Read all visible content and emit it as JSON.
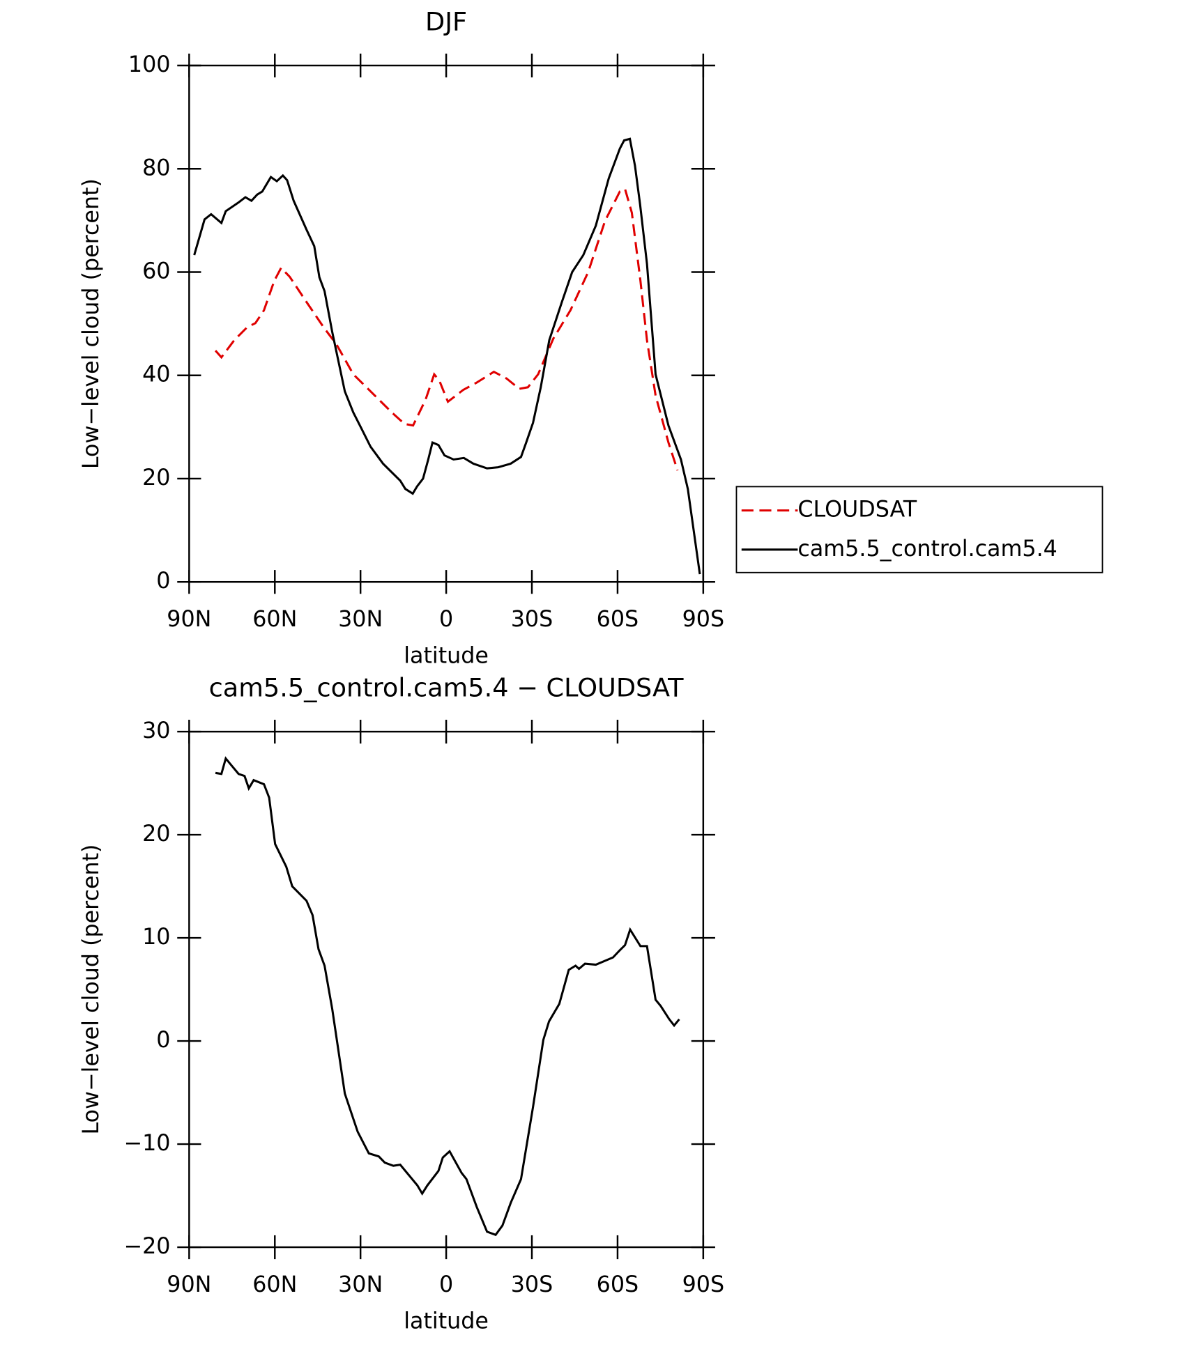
{
  "chart_data": [
    {
      "type": "line",
      "title": "DJF",
      "x_label": "latitude",
      "y_label": "Low−level cloud (percent)",
      "xlim": [
        90,
        -90
      ],
      "xticks": [
        {
          "value": 90,
          "label": "90N"
        },
        {
          "value": 60,
          "label": "60N"
        },
        {
          "value": 30,
          "label": "30N"
        },
        0,
        {
          "value": -30,
          "label": "30S"
        },
        {
          "value": -60,
          "label": "60S"
        },
        {
          "value": -90,
          "label": "90S"
        }
      ],
      "ylim": [
        0,
        100
      ],
      "yticks": [
        0,
        20,
        40,
        60,
        80,
        100
      ],
      "legend": "right",
      "series": [
        {
          "name": "CLOUDSAT",
          "color": "#e00000",
          "line_style": "dashed",
          "x": [
            80.8,
            78.7,
            74.2,
            69.7,
            66.8,
            63.8,
            60.2,
            57.8,
            54.8,
            48.9,
            42.9,
            38.4,
            32.5,
            25,
            19,
            14.6,
            11.6,
            7.2,
            4.2,
            2.4,
            -0.6,
            -6,
            -10.7,
            -16.7,
            -21.1,
            -25.6,
            -28.6,
            -32.2,
            -37.5,
            -43.5,
            -49.7,
            -55.6,
            -60.8,
            -62.6,
            -65,
            -68,
            -70.3,
            -73.3,
            -77.8,
            -81
          ],
          "values": [
            44.8,
            43.5,
            46.8,
            49.3,
            50.1,
            52.6,
            58.3,
            60.8,
            59.1,
            54.2,
            49.3,
            46,
            40.2,
            36.1,
            32.8,
            30.6,
            30.3,
            35.3,
            40.2,
            39,
            34.9,
            37.2,
            38.6,
            40.7,
            39.4,
            37.4,
            37.7,
            40.2,
            47.1,
            52.6,
            60,
            69.9,
            75.6,
            76.1,
            71.5,
            58.3,
            46.8,
            36.1,
            27,
            21.6
          ]
        },
        {
          "name": "cam5.5_control.cam5.4",
          "color": "#000000",
          "line_style": "solid",
          "x": [
            88.2,
            84.6,
            82.3,
            78.7,
            77.2,
            72.7,
            70.3,
            68.2,
            66.2,
            64.4,
            61.4,
            59.3,
            57.2,
            55.7,
            53.4,
            48.9,
            46.2,
            44.4,
            42.6,
            39.9,
            35.5,
            32.5,
            29.5,
            26.5,
            22.1,
            16.1,
            14.3,
            11.7,
            10.2,
            8.1,
            6.3,
            4.8,
            2.7,
            0.6,
            -2.6,
            -6.2,
            -9.5,
            -14.3,
            -18.2,
            -22.6,
            -26.2,
            -28,
            -30.4,
            -33.1,
            -36.1,
            -40.5,
            -44.1,
            -48,
            -52.4,
            -56.9,
            -60.8,
            -62.3,
            -64.3,
            -66.1,
            -67.9,
            -70.3,
            -73.3,
            -77.8,
            -82.2,
            -84.6,
            -88.8
          ],
          "values": [
            63.3,
            70.2,
            71.2,
            69.5,
            71.8,
            73.5,
            74.5,
            73.8,
            75,
            75.6,
            78.4,
            77.6,
            78.7,
            77.8,
            73.8,
            68.2,
            65,
            59,
            56.3,
            48.4,
            36.9,
            32.8,
            29.5,
            26.2,
            22.9,
            19.6,
            18,
            17.1,
            18.5,
            20,
            23.7,
            27,
            26.5,
            24.5,
            23.7,
            24,
            22.9,
            22,
            22.2,
            22.9,
            24.2,
            27,
            30.8,
            37.7,
            46.8,
            54.2,
            60,
            63.3,
            69,
            78.1,
            83.9,
            85.5,
            85.8,
            80.6,
            73.1,
            61.6,
            40.2,
            30.3,
            23.7,
            18,
            1.5
          ]
        }
      ]
    },
    {
      "type": "line",
      "title": "cam5.5_control.cam5.4 − CLOUDSAT",
      "x_label": "latitude",
      "y_label": "Low−level cloud (percent)",
      "xlim": [
        90,
        -90
      ],
      "xticks": [
        {
          "value": 90,
          "label": "90N"
        },
        {
          "value": 60,
          "label": "60N"
        },
        {
          "value": 30,
          "label": "30N"
        },
        0,
        {
          "value": -30,
          "label": "30S"
        },
        {
          "value": -60,
          "label": "60S"
        },
        {
          "value": -90,
          "label": "90S"
        }
      ],
      "ylim": [
        -20,
        30
      ],
      "yticks": [
        {
          "value": -20,
          "label": "−20"
        },
        {
          "value": -10,
          "label": "−10"
        },
        0,
        10,
        20,
        30
      ],
      "series": [
        {
          "color": "#000000",
          "line_style": "solid",
          "x": [
            80.8,
            78.7,
            77.2,
            75.1,
            72.7,
            70.6,
            69.1,
            67.4,
            63.8,
            62,
            59.9,
            56,
            53.9,
            48.9,
            46.8,
            44.7,
            42.6,
            39.9,
            35.5,
            31,
            27.1,
            23.6,
            21.5,
            18.5,
            16.1,
            10.1,
            8.4,
            6.6,
            2.7,
            1.2,
            -1.2,
            -5.4,
            -7.1,
            -10.7,
            -14.3,
            -17.3,
            -19.7,
            -22.6,
            -26.2,
            -30.4,
            -34,
            -36,
            -39.6,
            -42.9,
            -45.3,
            -46.5,
            -48.6,
            -52.4,
            -58.4,
            -60.8,
            -62.6,
            -64.4,
            -68,
            -70.3,
            -73.3,
            -75.1,
            -78.1,
            -79.8,
            -81.6
          ],
          "values": [
            26,
            25.9,
            27.4,
            26.7,
            25.9,
            25.7,
            24.5,
            25.3,
            24.9,
            23.6,
            19.1,
            16.9,
            15,
            13.6,
            12.2,
            8.9,
            7.3,
            3.1,
            -5.1,
            -8.8,
            -10.9,
            -11.2,
            -11.8,
            -12.1,
            -12,
            -14,
            -14.8,
            -14,
            -12.6,
            -11.3,
            -10.7,
            -12.8,
            -13.4,
            -16.1,
            -18.5,
            -18.8,
            -17.9,
            -15.7,
            -13.4,
            -6.4,
            0.1,
            1.9,
            3.6,
            6.9,
            7.3,
            7,
            7.5,
            7.4,
            8.1,
            8.8,
            9.3,
            10.8,
            9.2,
            9.2,
            4,
            3.4,
            2.1,
            1.5,
            2.1
          ]
        }
      ]
    }
  ]
}
